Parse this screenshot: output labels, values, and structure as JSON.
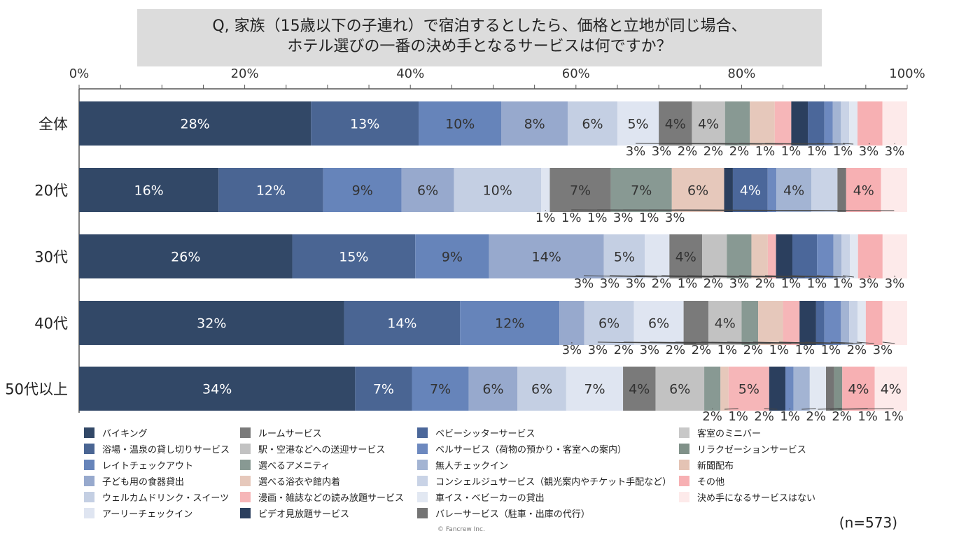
{
  "title": {
    "line1": "Q, 家族（15歳以下の子連れ）で宿泊するとしたら、価格と立地が同じ場合、",
    "line2": "ホテル選びの一番の決め手となるサービスは何ですか？"
  },
  "note": "(n=573)",
  "credit": "© Fancrew Inc.",
  "colors": {
    "accent_dark": "#324867",
    "border": "#666666"
  },
  "chart_data": {
    "type": "bar",
    "orientation": "horizontal",
    "stacked": true,
    "xlim": [
      0,
      100
    ],
    "xticks": [
      "0%",
      "20%",
      "40%",
      "60%",
      "80%",
      "100%"
    ],
    "categories": [
      "全体",
      "20代",
      "30代",
      "40代",
      "50代以上"
    ],
    "legend_position": "bottom",
    "series": [
      {
        "name": "バイキング",
        "color": "#324867",
        "values": [
          28,
          16,
          26,
          32,
          34
        ],
        "labels": [
          "28%",
          "16%",
          "26%",
          "32%",
          "34%"
        ]
      },
      {
        "name": "浴場・温泉の貸し切りサービス",
        "color": "#4a6593",
        "values": [
          13,
          12,
          15,
          14,
          7
        ],
        "labels": [
          "13%",
          "12%",
          "15%",
          "14%",
          "7%"
        ]
      },
      {
        "name": "レイトチェックアウト",
        "color": "#6684ba",
        "values": [
          10,
          9,
          9,
          12,
          7
        ],
        "labels": [
          "10%",
          "9%",
          "9%",
          "12%",
          "7%"
        ]
      },
      {
        "name": "子ども用の食器貸出",
        "color": "#97a9cd",
        "values": [
          8,
          6,
          14,
          3,
          6
        ],
        "labels": [
          "8%",
          "6%",
          "14%",
          "3%",
          "6%"
        ]
      },
      {
        "name": "ウェルカムドリンク・スイーツ",
        "color": "#c4cfe3",
        "values": [
          6,
          10,
          5,
          6,
          6
        ],
        "labels": [
          "6%",
          "10%",
          "5%",
          "6%",
          "6%"
        ]
      },
      {
        "name": "アーリーチェックイン",
        "color": "#dfe5f1",
        "values": [
          5,
          1,
          3,
          6,
          7
        ],
        "labels": [
          "5%",
          "1%",
          "3%",
          "6%",
          "7%"
        ]
      },
      {
        "name": "ルームサービス",
        "color": "#7a7a7a",
        "values": [
          4,
          7,
          4,
          3,
          4
        ],
        "labels": [
          "4%",
          "7%",
          "4%",
          "3%",
          "4%"
        ]
      },
      {
        "name": "駅・空港などへの送迎サービス",
        "color": "#c2c2c2",
        "values": [
          4,
          0,
          3,
          4,
          6
        ],
        "labels": [
          "4%",
          "",
          "3%",
          "4%",
          "6%"
        ]
      },
      {
        "name": "選べるアメニティ",
        "color": "#889993",
        "values": [
          3,
          7,
          3,
          2,
          2
        ],
        "labels": [
          "3%",
          "7%",
          "3%",
          "2%",
          "2%"
        ]
      },
      {
        "name": "選べる浴衣や館内着",
        "color": "#e6c8bb",
        "values": [
          3,
          6,
          2,
          3,
          1
        ],
        "labels": [
          "3%",
          "6%",
          "2%",
          "3%",
          "1%"
        ]
      },
      {
        "name": "漫画・雑誌などの読み放題サービス",
        "color": "#f6b6b8",
        "values": [
          2,
          0,
          1,
          2,
          5
        ],
        "labels": [
          "2%",
          "",
          "1%",
          "2%",
          "5%"
        ]
      },
      {
        "name": "ビデオ見放題サービス",
        "color": "#2b3f5e",
        "values": [
          2,
          1,
          2,
          2,
          2
        ],
        "labels": [
          "2%",
          "1%",
          "2%",
          "2%",
          "2%"
        ]
      },
      {
        "name": "ベビーシッターサービス",
        "color": "#4b679a",
        "values": [
          2,
          4,
          3,
          1,
          0
        ],
        "labels": [
          "2%",
          "4%",
          "3%",
          "1%",
          ""
        ]
      },
      {
        "name": "ベルサービス（荷物の預かり・客室への案内）",
        "color": "#6d89bf",
        "values": [
          1,
          1,
          2,
          2,
          1
        ],
        "labels": [
          "1%",
          "1%",
          "2%",
          "2%",
          "1%"
        ]
      },
      {
        "name": "無人チェックイン",
        "color": "#a3b4d3",
        "values": [
          1,
          4,
          1,
          1,
          2
        ],
        "labels": [
          "1%",
          "4%",
          "1%",
          "1%",
          "2%"
        ]
      },
      {
        "name": "コンシェルジュサービス（観光案内やチケット手配など）",
        "color": "#c9d3e6",
        "values": [
          1,
          3,
          1,
          1,
          0
        ],
        "labels": [
          "1%",
          "3%",
          "1%",
          "1%",
          ""
        ]
      },
      {
        "name": "車イス・ベビーカーの貸出",
        "color": "#e2e8f2",
        "values": [
          1,
          0,
          1,
          1,
          2
        ],
        "labels": [
          "1%",
          "",
          "1%",
          "1%",
          "2%"
        ]
      },
      {
        "name": "バレーサービス（駐車・出庫の代行）",
        "color": "#747474",
        "values": [
          0,
          1,
          0,
          0,
          1
        ],
        "labels": [
          "",
          "1%",
          "",
          "",
          "1%"
        ]
      },
      {
        "name": "客室のミニバー",
        "color": "#c8c8c8",
        "values": [
          0,
          0,
          0,
          0,
          0
        ],
        "labels": [
          "",
          "",
          "",
          "",
          ""
        ]
      },
      {
        "name": "リラクゼーションサービス",
        "color": "#809189",
        "values": [
          0,
          0,
          0,
          0,
          1
        ],
        "labels": [
          "",
          "",
          "",
          "",
          "1%"
        ]
      },
      {
        "name": "新聞配布",
        "color": "#e4c3b4",
        "values": [
          0,
          0,
          0,
          0,
          0
        ],
        "labels": [
          "",
          "",
          "",
          "",
          ""
        ]
      },
      {
        "name": "その他",
        "color": "#f7b0b3",
        "values": [
          3,
          4,
          3,
          2,
          4
        ],
        "labels": [
          "3%",
          "4%",
          "3%",
          "2%",
          "4%"
        ]
      },
      {
        "name": "決め手になるサービスはない",
        "color": "#fdeaea",
        "values": [
          3,
          3,
          3,
          3,
          4
        ],
        "labels": [
          "3%",
          "3%",
          "3%",
          "3%",
          "4%"
        ]
      }
    ],
    "legend_order": [
      "バイキング",
      "ルームサービス",
      "ベビーシッターサービス",
      "客室のミニバー",
      "浴場・温泉の貸し切りサービス",
      "駅・空港などへの送迎サービス",
      "ベルサービス（荷物の預かり・客室への案内）",
      "リラクゼーションサービス",
      "レイトチェックアウト",
      "選べるアメニティ",
      "無人チェックイン",
      "新聞配布",
      "子ども用の食器貸出",
      "選べる浴衣や館内着",
      "コンシェルジュサービス（観光案内やチケット手配など）",
      "その他",
      "ウェルカムドリンク・スイーツ",
      "漫画・雑誌などの読み放題サービス",
      "車イス・ベビーカーの貸出",
      "決め手になるサービスはない",
      "アーリーチェックイン",
      "ビデオ見放題サービス",
      "バレーサービス（駐車・出庫の代行）"
    ]
  }
}
